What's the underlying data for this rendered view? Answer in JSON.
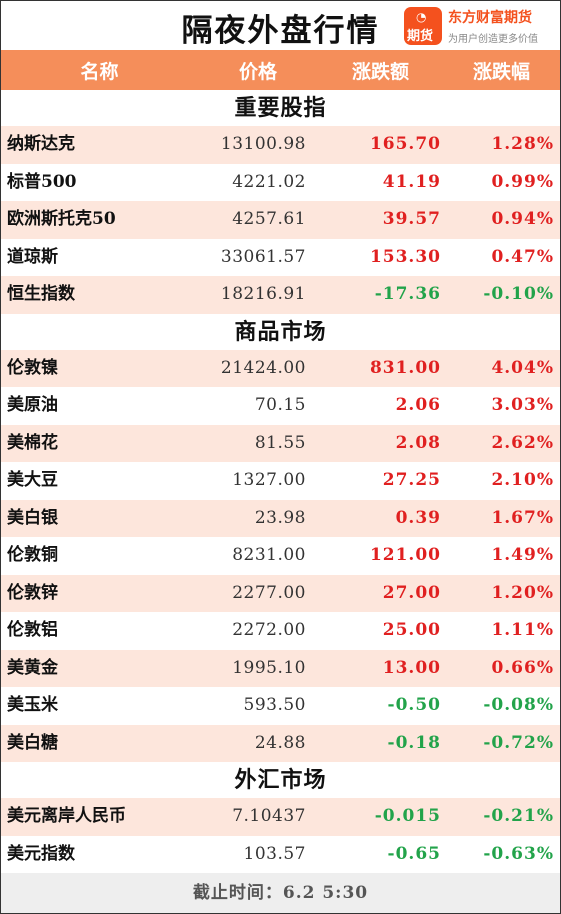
{
  "title": "隔夜外盘行情",
  "brand": {
    "name": "东方财富期货",
    "slogan": "为用户创造更多价值",
    "logo_text": "期货",
    "accent": "#f4511e"
  },
  "columns": [
    "名称",
    "价格",
    "涨跌额",
    "涨跌幅"
  ],
  "colors": {
    "header_bg": "#f58e5a",
    "row_alt": "#fde6dc",
    "up": "#e02020",
    "down": "#22a34a"
  },
  "sections": [
    {
      "title": "重要股指",
      "rows": [
        {
          "name": "纳斯达克",
          "price": "13100.98",
          "change": "165.70",
          "pct": "1.28%",
          "dir": "up"
        },
        {
          "name": "标普500",
          "price": "4221.02",
          "change": "41.19",
          "pct": "0.99%",
          "dir": "up"
        },
        {
          "name": "欧洲斯托克50",
          "price": "4257.61",
          "change": "39.57",
          "pct": "0.94%",
          "dir": "up"
        },
        {
          "name": "道琼斯",
          "price": "33061.57",
          "change": "153.30",
          "pct": "0.47%",
          "dir": "up"
        },
        {
          "name": "恒生指数",
          "price": "18216.91",
          "change": "-17.36",
          "pct": "-0.10%",
          "dir": "down"
        }
      ]
    },
    {
      "title": "商品市场",
      "rows": [
        {
          "name": "伦敦镍",
          "price": "21424.00",
          "change": "831.00",
          "pct": "4.04%",
          "dir": "up"
        },
        {
          "name": "美原油",
          "price": "70.15",
          "change": "2.06",
          "pct": "3.03%",
          "dir": "up"
        },
        {
          "name": "美棉花",
          "price": "81.55",
          "change": "2.08",
          "pct": "2.62%",
          "dir": "up"
        },
        {
          "name": "美大豆",
          "price": "1327.00",
          "change": "27.25",
          "pct": "2.10%",
          "dir": "up"
        },
        {
          "name": "美白银",
          "price": "23.98",
          "change": "0.39",
          "pct": "1.67%",
          "dir": "up"
        },
        {
          "name": "伦敦铜",
          "price": "8231.00",
          "change": "121.00",
          "pct": "1.49%",
          "dir": "up"
        },
        {
          "name": "伦敦锌",
          "price": "2277.00",
          "change": "27.00",
          "pct": "1.20%",
          "dir": "up"
        },
        {
          "name": "伦敦铝",
          "price": "2272.00",
          "change": "25.00",
          "pct": "1.11%",
          "dir": "up"
        },
        {
          "name": "美黄金",
          "price": "1995.10",
          "change": "13.00",
          "pct": "0.66%",
          "dir": "up"
        },
        {
          "name": "美玉米",
          "price": "593.50",
          "change": "-0.50",
          "pct": "-0.08%",
          "dir": "down"
        },
        {
          "name": "美白糖",
          "price": "24.88",
          "change": "-0.18",
          "pct": "-0.72%",
          "dir": "down"
        }
      ]
    },
    {
      "title": "外汇市场",
      "rows": [
        {
          "name": "美元离岸人民币",
          "price": "7.10437",
          "change": "-0.015",
          "pct": "-0.21%",
          "dir": "down"
        },
        {
          "name": "美元指数",
          "price": "103.57",
          "change": "-0.65",
          "pct": "-0.63%",
          "dir": "down"
        }
      ]
    }
  ],
  "footer": "截止时间：6.2 5:30"
}
